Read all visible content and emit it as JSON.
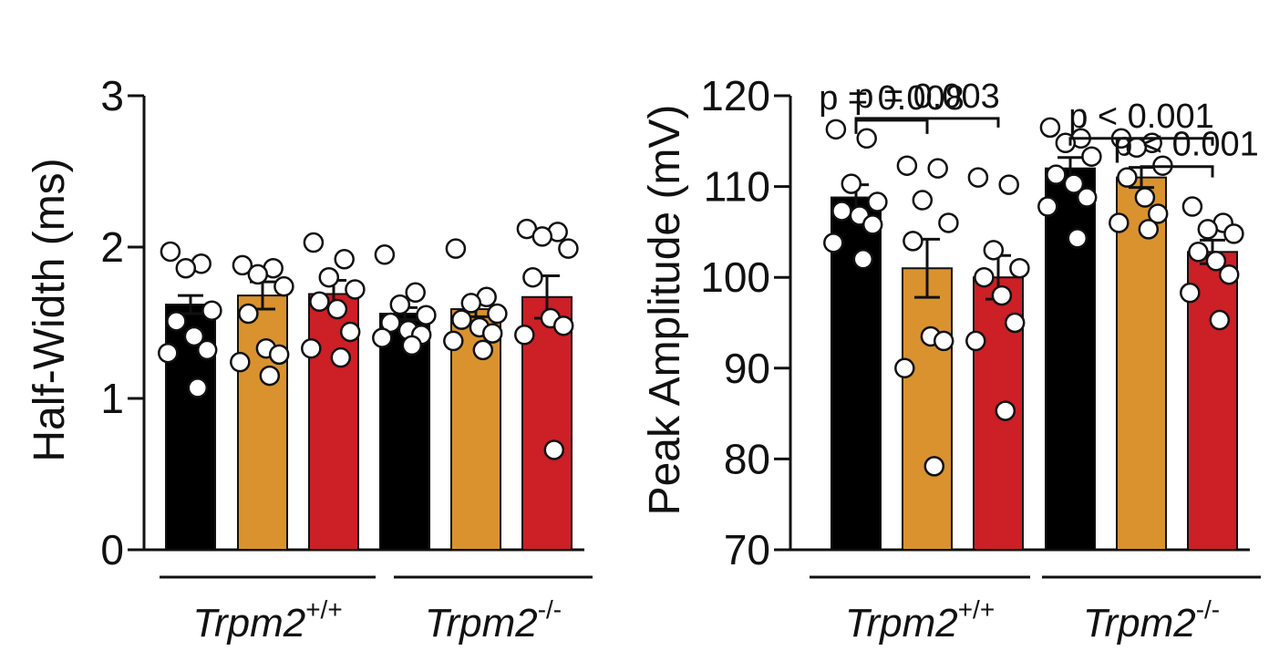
{
  "chart_data": [
    {
      "type": "bar",
      "panel": "left",
      "ylabel": "Half-Width (ms)",
      "ylim": [
        0,
        3
      ],
      "yticks": [
        "0",
        "1",
        "2",
        "3"
      ],
      "group_labels": [
        {
          "base": "Trpm2",
          "sup": "+/+"
        },
        {
          "base": "Trpm2",
          "sup": "-/-"
        }
      ],
      "colors": [
        "#000000",
        "#D9922E",
        "#CC1F26"
      ],
      "bars": [
        {
          "group": 0,
          "value": 1.62,
          "sem": 0.06,
          "color": "#000000",
          "points": [
            1.97,
            1.89,
            1.86,
            1.58,
            1.51,
            1.41,
            1.32,
            1.3,
            1.07
          ]
        },
        {
          "group": 0,
          "value": 1.68,
          "sem": 0.09,
          "color": "#D9922E",
          "points": [
            1.88,
            1.86,
            1.82,
            1.74,
            1.56,
            1.33,
            1.29,
            1.24,
            1.15
          ]
        },
        {
          "group": 0,
          "value": 1.69,
          "sem": 0.09,
          "color": "#CC1F26",
          "points": [
            2.03,
            1.92,
            1.8,
            1.72,
            1.64,
            1.59,
            1.44,
            1.33,
            1.27
          ]
        },
        {
          "group": 1,
          "value": 1.56,
          "sem": 0.04,
          "color": "#000000",
          "points": [
            1.95,
            1.7,
            1.62,
            1.55,
            1.5,
            1.45,
            1.42,
            1.4,
            1.35
          ]
        },
        {
          "group": 1,
          "value": 1.59,
          "sem": 0.05,
          "color": "#D9922E",
          "points": [
            1.99,
            1.67,
            1.63,
            1.56,
            1.52,
            1.47,
            1.43,
            1.38,
            1.32
          ]
        },
        {
          "group": 1,
          "value": 1.67,
          "sem": 0.14,
          "color": "#CC1F26",
          "points": [
            2.12,
            2.1,
            2.07,
            1.99,
            1.8,
            1.53,
            1.48,
            1.42,
            0.66
          ]
        }
      ]
    },
    {
      "type": "bar",
      "panel": "right",
      "ylabel": "Peak Amplitude (mV)",
      "ylim": [
        70,
        120
      ],
      "yticks": [
        "70",
        "80",
        "90",
        "100",
        "110",
        "120"
      ],
      "group_labels": [
        {
          "base": "Trpm2",
          "sup": "+/+"
        },
        {
          "base": "Trpm2",
          "sup": "-/-"
        }
      ],
      "colors": [
        "#000000",
        "#D9922E",
        "#CC1F26"
      ],
      "bars": [
        {
          "group": 0,
          "value": 108.8,
          "sem": 1.4,
          "color": "#000000",
          "points": [
            116.3,
            115.3,
            110.3,
            108.3,
            107.3,
            106.8,
            105.8,
            103.8,
            102.0
          ]
        },
        {
          "group": 0,
          "value": 101.0,
          "sem": 3.2,
          "color": "#D9922E",
          "points": [
            112.3,
            112.0,
            108.5,
            106.0,
            104.0,
            93.5,
            93.0,
            90.0,
            79.2
          ]
        },
        {
          "group": 0,
          "value": 100.0,
          "sem": 2.4,
          "color": "#CC1F26",
          "points": [
            111.0,
            110.2,
            103.0,
            101.0,
            100.0,
            98.0,
            95.0,
            93.0,
            85.3
          ]
        },
        {
          "group": 1,
          "value": 112.0,
          "sem": 1.2,
          "color": "#000000",
          "points": [
            116.5,
            115.3,
            114.8,
            113.3,
            111.3,
            110.3,
            108.8,
            107.8,
            104.3
          ]
        },
        {
          "group": 1,
          "value": 111.0,
          "sem": 1.1,
          "color": "#D9922E",
          "points": [
            115.3,
            114.8,
            114.3,
            112.3,
            111.0,
            108.8,
            107.0,
            106.0,
            105.3
          ]
        },
        {
          "group": 1,
          "value": 102.8,
          "sem": 1.3,
          "color": "#CC1F26",
          "points": [
            107.8,
            106.0,
            105.3,
            104.8,
            102.8,
            101.8,
            100.3,
            98.3,
            95.3
          ]
        }
      ],
      "annotations": [
        {
          "text": "p = 0.003",
          "from_bar": 0,
          "to_bar": 2,
          "level": 117.5,
          "drop_to": 116.5
        },
        {
          "text": "p = 0.008",
          "from_bar": 0,
          "to_bar": 1,
          "level": 117.3,
          "drop_to": 115.8
        },
        {
          "text": "p < 0.001",
          "from_bar": 3,
          "to_bar": 5,
          "level": 115.3,
          "drop_to": 114.5
        },
        {
          "text": "p < 0.001",
          "from_bar": 4,
          "to_bar": 5,
          "level": 112.2,
          "drop_to": 111.0
        }
      ]
    }
  ]
}
